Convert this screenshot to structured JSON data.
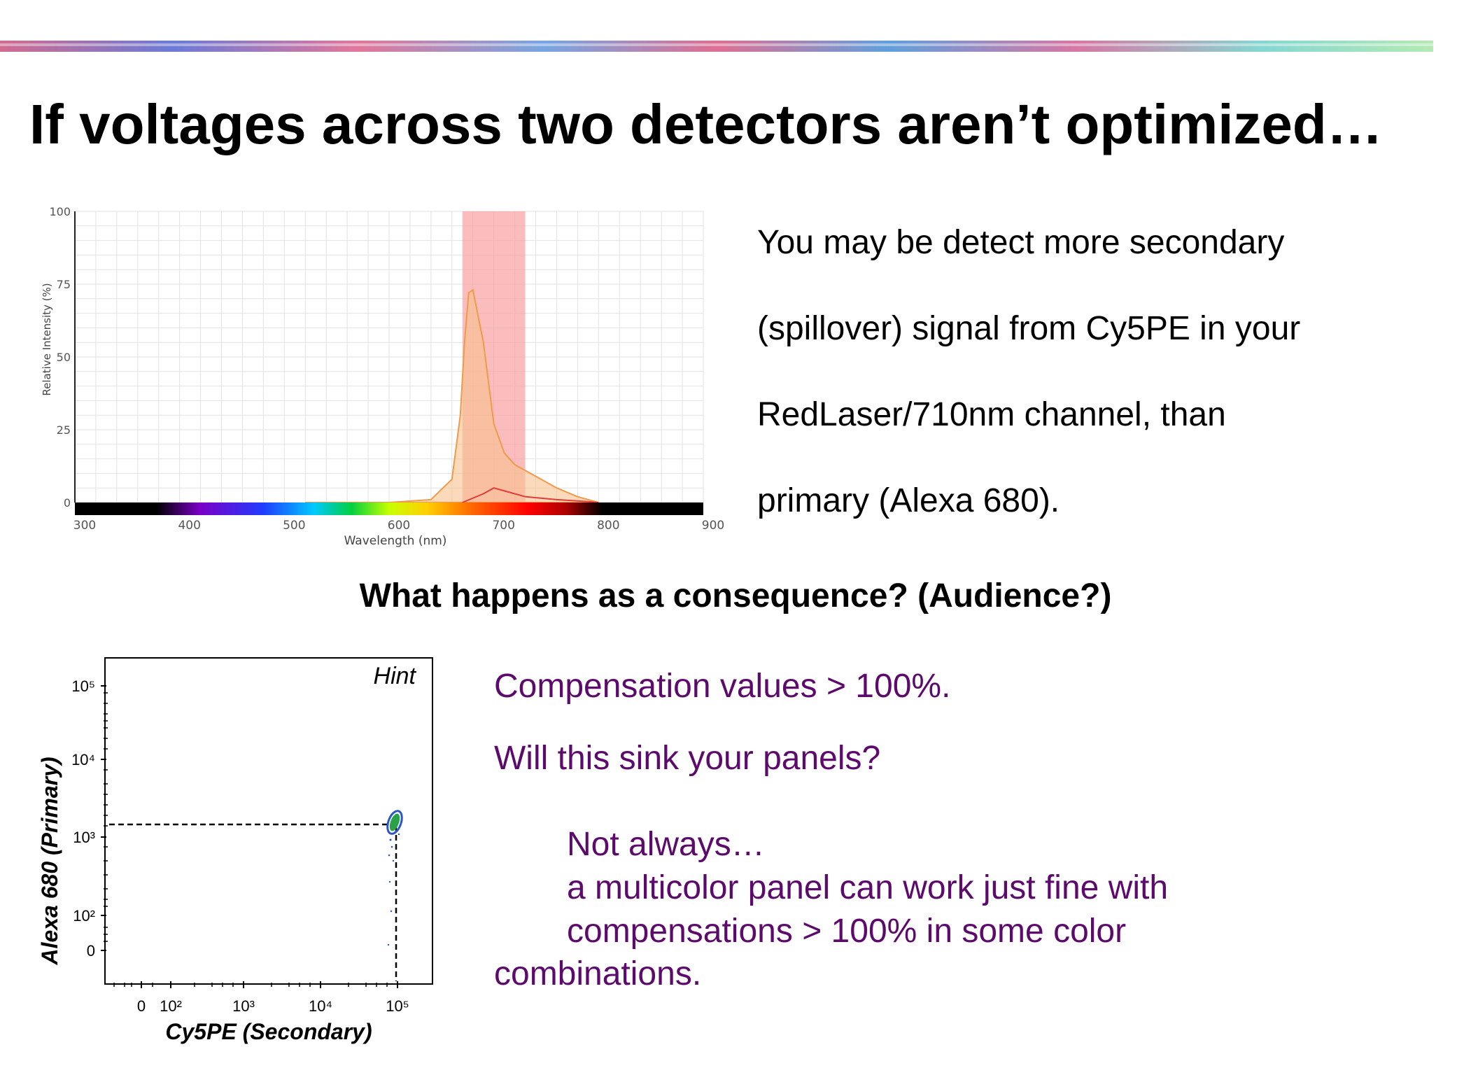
{
  "title": "If voltages across two detectors aren’t optimized…",
  "description_lines": [
    "You may be detect more secondary",
    "(spillover) signal from Cy5PE in your",
    "RedLaser/710nm channel, than",
    "primary (Alexa 680)."
  ],
  "question": "What happens as a consequence? (Audience?)",
  "answer": {
    "line1": "Compensation values > 100%.",
    "line2": "Will this sink your panels?",
    "line3": "Not always…",
    "line4": "a multicolor panel can work just fine with",
    "line5": "compensations > 100% in some color",
    "line6": "combinations."
  },
  "colors": {
    "answer_text": "#5c0a6b",
    "filter_band": "#f8a0a0",
    "emission_fill": "#f7c18e",
    "secondary_curve": "#e23b3b"
  },
  "chart_data": [
    {
      "type": "area",
      "title": "",
      "xlabel": "Wavelength (nm)",
      "ylabel": "Relative Intensity (%)",
      "xlim": [
        300,
        900
      ],
      "ylim": [
        0,
        100
      ],
      "x_ticks": [
        "300",
        "400",
        "500",
        "600",
        "700",
        "800",
        "900"
      ],
      "y_ticks": [
        "0",
        "25",
        "50",
        "75",
        "100"
      ],
      "grid": true,
      "highlight_band": [
        670,
        730
      ],
      "series": [
        {
          "x": [
            520,
            600,
            640,
            660,
            668,
            672,
            676,
            680,
            690,
            700,
            710,
            720,
            740,
            760,
            780,
            800
          ],
          "y": [
            0,
            0,
            1,
            8,
            30,
            55,
            72,
            73,
            55,
            27,
            17,
            13,
            9,
            5,
            2,
            0
          ]
        },
        {
          "x": [
            670,
            690,
            700,
            710,
            730,
            760,
            790,
            800
          ],
          "y": [
            0,
            3,
            5,
            4,
            2,
            1,
            0.3,
            0
          ]
        }
      ]
    },
    {
      "type": "scatter",
      "title": "",
      "xlabel": "Cy5PE (Secondary)",
      "ylabel": "Alexa 680 (Primary)",
      "annotation": "Hint",
      "x_ticks": [
        "0",
        "10²",
        "10³",
        "10⁴",
        "10⁵"
      ],
      "y_ticks": [
        "0",
        "10²",
        "10³",
        "10⁴",
        "10⁵"
      ],
      "population_center": {
        "x": "10⁵",
        "y": "10³"
      }
    }
  ]
}
